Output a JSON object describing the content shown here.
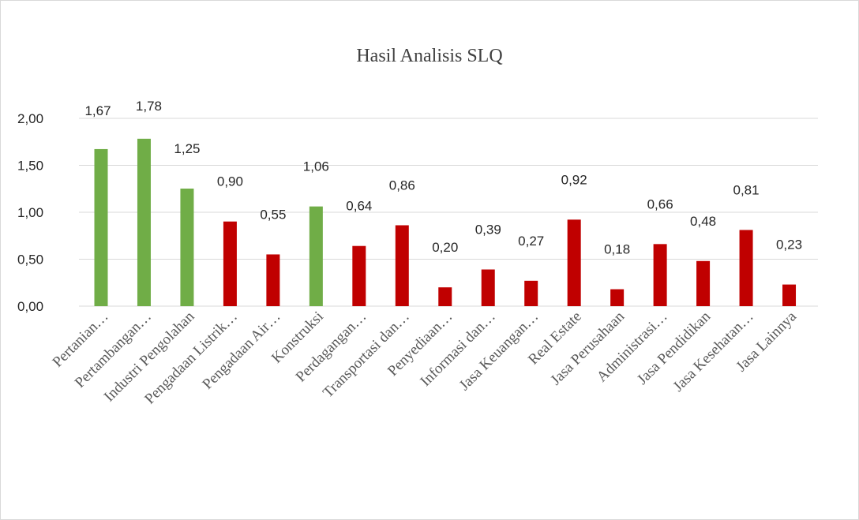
{
  "chart_data": {
    "type": "bar",
    "title": "Hasil Analisis SLQ",
    "xlabel": "",
    "ylabel": "",
    "categories": [
      "Pertanian…",
      "Pertambangan…",
      "Industri Pengolahan",
      "Pengadaan Listrik…",
      "Pengadaan Air…",
      "Konstruksi",
      "Perdagangan…",
      "Transportasi dan…",
      "Penyediaan…",
      "Informasi dan…",
      "Jasa Keuangan…",
      "Real Estate",
      "Jasa Perusahaan",
      "Administrasi…",
      "Jasa Pendidikan",
      "Jasa Kesehatan…",
      "Jasa Lainnya"
    ],
    "values": [
      1.67,
      1.78,
      1.25,
      0.9,
      0.55,
      1.06,
      0.64,
      0.86,
      0.2,
      0.39,
      0.27,
      0.92,
      0.18,
      0.66,
      0.48,
      0.81,
      0.23
    ],
    "data_labels": [
      "1,67",
      "1,78",
      "1,25",
      "0,90",
      "0,55",
      "1,06",
      "0,64",
      "0,86",
      "0,20",
      "0,39",
      "0,27",
      "0,92",
      "0,18",
      "0,66",
      "0,48",
      "0,81",
      "0,23"
    ],
    "y_tick_labels": [
      "2,00",
      "1,50",
      "1,00",
      "0,50",
      "0,00"
    ],
    "ylim": [
      0,
      2
    ],
    "grid": true,
    "legend": "none",
    "colors": {
      "above_one": "#70AD47",
      "below_one": "#C00000",
      "gridline": "#D9D9D9"
    },
    "highlight_categories": [
      "Pertanian…",
      "Pertambangan…",
      "Industri Pengolahan",
      "Konstruksi"
    ]
  }
}
